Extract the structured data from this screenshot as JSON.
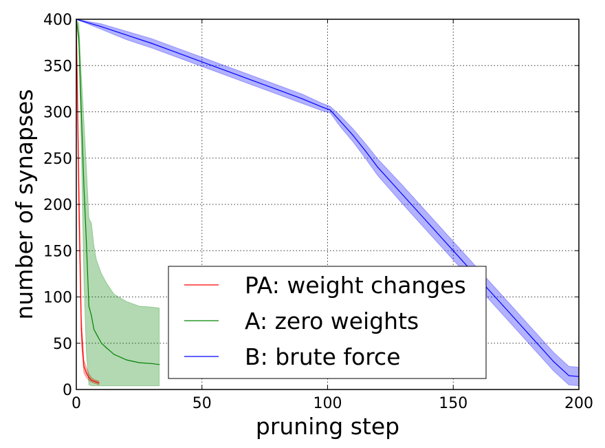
{
  "chart_data": {
    "type": "line",
    "xlabel": "pruning step",
    "ylabel": "number of synapses",
    "xlim": [
      0,
      200
    ],
    "ylim": [
      0,
      400
    ],
    "xticks": [
      "0",
      "50",
      "100",
      "150",
      "200"
    ],
    "yticks": [
      "0",
      "50",
      "100",
      "150",
      "200",
      "250",
      "300",
      "350",
      "400"
    ],
    "grid": true,
    "legend_position": "lower-center",
    "series": [
      {
        "name": "PA: weight changes",
        "color": "#ff0000",
        "fill_color": "#ff0000",
        "x": [
          0,
          1,
          2,
          3,
          4,
          5,
          6,
          7,
          8,
          9
        ],
        "y": [
          400,
          210,
          65,
          25,
          18,
          13,
          10,
          9,
          8,
          7
        ],
        "lower": [
          400,
          180,
          50,
          18,
          13,
          10,
          8,
          7,
          6,
          5
        ],
        "upper": [
          400,
          240,
          80,
          32,
          24,
          17,
          13,
          11,
          10,
          9
        ]
      },
      {
        "name": "A: zero weights",
        "color": "#008000",
        "fill_color": "#008000",
        "x": [
          0,
          1,
          2,
          3,
          4,
          5,
          6,
          7,
          8,
          10,
          12,
          15,
          20,
          25,
          30,
          33
        ],
        "y": [
          400,
          380,
          300,
          220,
          160,
          90,
          80,
          65,
          60,
          50,
          45,
          38,
          32,
          29,
          28,
          27
        ],
        "lower": [
          400,
          370,
          260,
          120,
          40,
          5,
          4,
          4,
          4,
          4,
          4,
          4,
          4,
          4,
          4,
          4
        ],
        "upper": [
          400,
          395,
          340,
          290,
          240,
          185,
          180,
          155,
          140,
          125,
          115,
          103,
          95,
          90,
          89,
          88
        ]
      },
      {
        "name": "B: brute force",
        "color": "#0000ff",
        "fill_color": "#0000ff",
        "x": [
          0,
          10,
          20,
          30,
          40,
          50,
          60,
          70,
          80,
          90,
          98,
          101,
          105,
          110,
          115,
          120,
          130,
          140,
          150,
          160,
          170,
          180,
          190,
          196,
          200
        ],
        "y": [
          400,
          392,
          383,
          374,
          364,
          354,
          344,
          334,
          324,
          314,
          305,
          302,
          290,
          275,
          258,
          240,
          210,
          180,
          150,
          120,
          90,
          60,
          30,
          15,
          14
        ],
        "lower": [
          400,
          389,
          378,
          369,
          359,
          349,
          339,
          329,
          319,
          309,
          301,
          299,
          284,
          268,
          250,
          231,
          200,
          170,
          140,
          110,
          80,
          50,
          20,
          5,
          4
        ],
        "upper": [
          400,
          395,
          387,
          379,
          369,
          359,
          349,
          339,
          329,
          319,
          309,
          306,
          296,
          282,
          266,
          249,
          220,
          190,
          160,
          130,
          100,
          70,
          40,
          25,
          24
        ]
      }
    ]
  }
}
